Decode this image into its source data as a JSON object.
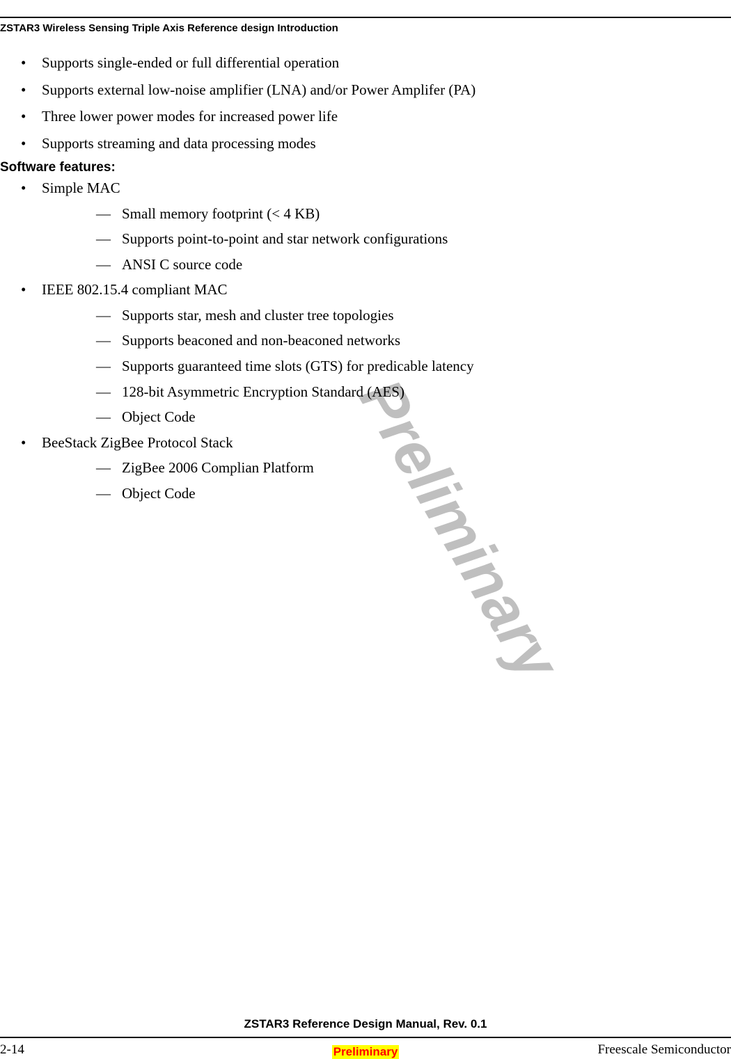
{
  "header": {
    "title": "ZSTAR3 Wireless Sensing Triple Axis Reference design Introduction"
  },
  "watermark": {
    "text": "Preliminary",
    "color": "#bfbfbf",
    "fontsize": 88
  },
  "top_bullets": [
    "Supports single-ended or full differential operation",
    "Supports external low-noise amplifier (LNA) and/or Power Amplifer (PA)",
    "Three lower power modes for increased power life",
    "Supports streaming and data processing modes"
  ],
  "section": {
    "heading": "Software features:",
    "items": [
      {
        "label": "Simple MAC",
        "subs": [
          "Small memory footprint (< 4 KB)",
          "Supports point-to-point and star network configurations",
          "ANSI C source code"
        ]
      },
      {
        "label": "IEEE 802.15.4 compliant MAC",
        "subs": [
          "Supports star, mesh and cluster tree topologies",
          "Supports beaconed and non-beaconed networks",
          "Supports guaranteed time slots (GTS) for predicable latency",
          "128-bit Asymmetric Encryption Standard (AES)",
          "Object Code"
        ]
      },
      {
        "label": "BeeStack ZigBee Protocol Stack",
        "subs": [
          "ZigBee 2006 Complian Platform",
          "Object Code"
        ]
      }
    ]
  },
  "footer": {
    "title": "ZSTAR3 Reference Design Manual, Rev. 0.1",
    "page": "2-14",
    "company": "Freescale Semiconductor",
    "preliminary": "Preliminary",
    "highlight_bg": "#ffff00",
    "highlight_fg": "#ff0000"
  },
  "colors": {
    "text": "#000000",
    "background": "#ffffff",
    "rule": "#000000"
  }
}
